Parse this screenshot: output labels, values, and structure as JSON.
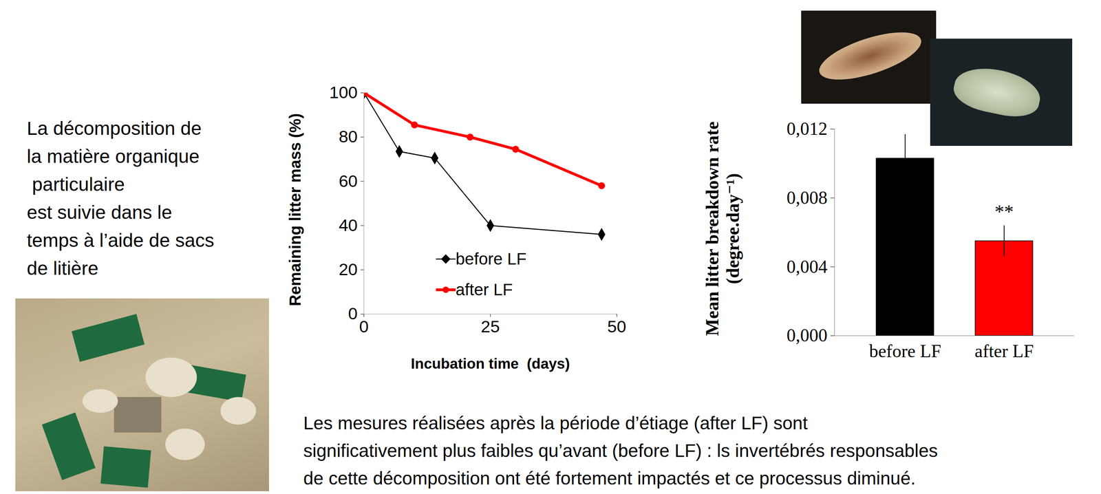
{
  "slide": {
    "intro": [
      "La décomposition de",
      "la matière organique",
      " particulaire",
      "est suivie dans le",
      "temps à l’aide de sacs",
      "de litière"
    ],
    "caption": [
      "Les mesures réalisées après la période d’étiage (after LF) sont",
      "significativement plus faibles qu’avant (before LF) : ls invertébrés responsables",
      "de cette décomposition ont été fortement impactés et ce processus diminué."
    ]
  },
  "chart_data": [
    {
      "type": "line",
      "xlabel": "Incubation time  (days)",
      "ylabel": "Remaining litter mass (%)",
      "xlim": [
        0,
        50
      ],
      "xticks": [
        0,
        25,
        50
      ],
      "ylim": [
        0,
        100
      ],
      "yticks": [
        0,
        20,
        40,
        60,
        80,
        100
      ],
      "grid": false,
      "legend": "bottom",
      "series": [
        {
          "name": "before LF",
          "color": "#000000",
          "marker": "diamond",
          "line_style": "solid",
          "x": [
            0,
            7,
            14,
            25,
            47
          ],
          "values": [
            100,
            73.5,
            70.5,
            40,
            36
          ]
        },
        {
          "name": "after LF",
          "color": "#ff0000",
          "marker": "circle",
          "line_style": "solid",
          "x": [
            0,
            10,
            21,
            30,
            47
          ],
          "values": [
            100,
            85.5,
            80,
            74.5,
            58
          ]
        }
      ]
    },
    {
      "type": "bar",
      "ylabel": [
        "Mean litter breakdown rate",
        "(degree.day⁻¹)"
      ],
      "categories": [
        "before LF",
        "after LF"
      ],
      "values": [
        0.0103,
        0.0055
      ],
      "errors": [
        0.0014,
        0.0009
      ],
      "colors": [
        "#000000",
        "#ff0000"
      ],
      "ylim": [
        0,
        0.012
      ],
      "yticks": [
        {
          "value": 0,
          "label": "0,000"
        },
        {
          "value": 0.004,
          "label": "0,004"
        },
        {
          "value": 0.008,
          "label": "0,008"
        },
        {
          "value": 0.012,
          "label": "0,012"
        }
      ],
      "grid": false,
      "annotations": [
        {
          "text": "**",
          "category": "after LF"
        }
      ]
    }
  ]
}
